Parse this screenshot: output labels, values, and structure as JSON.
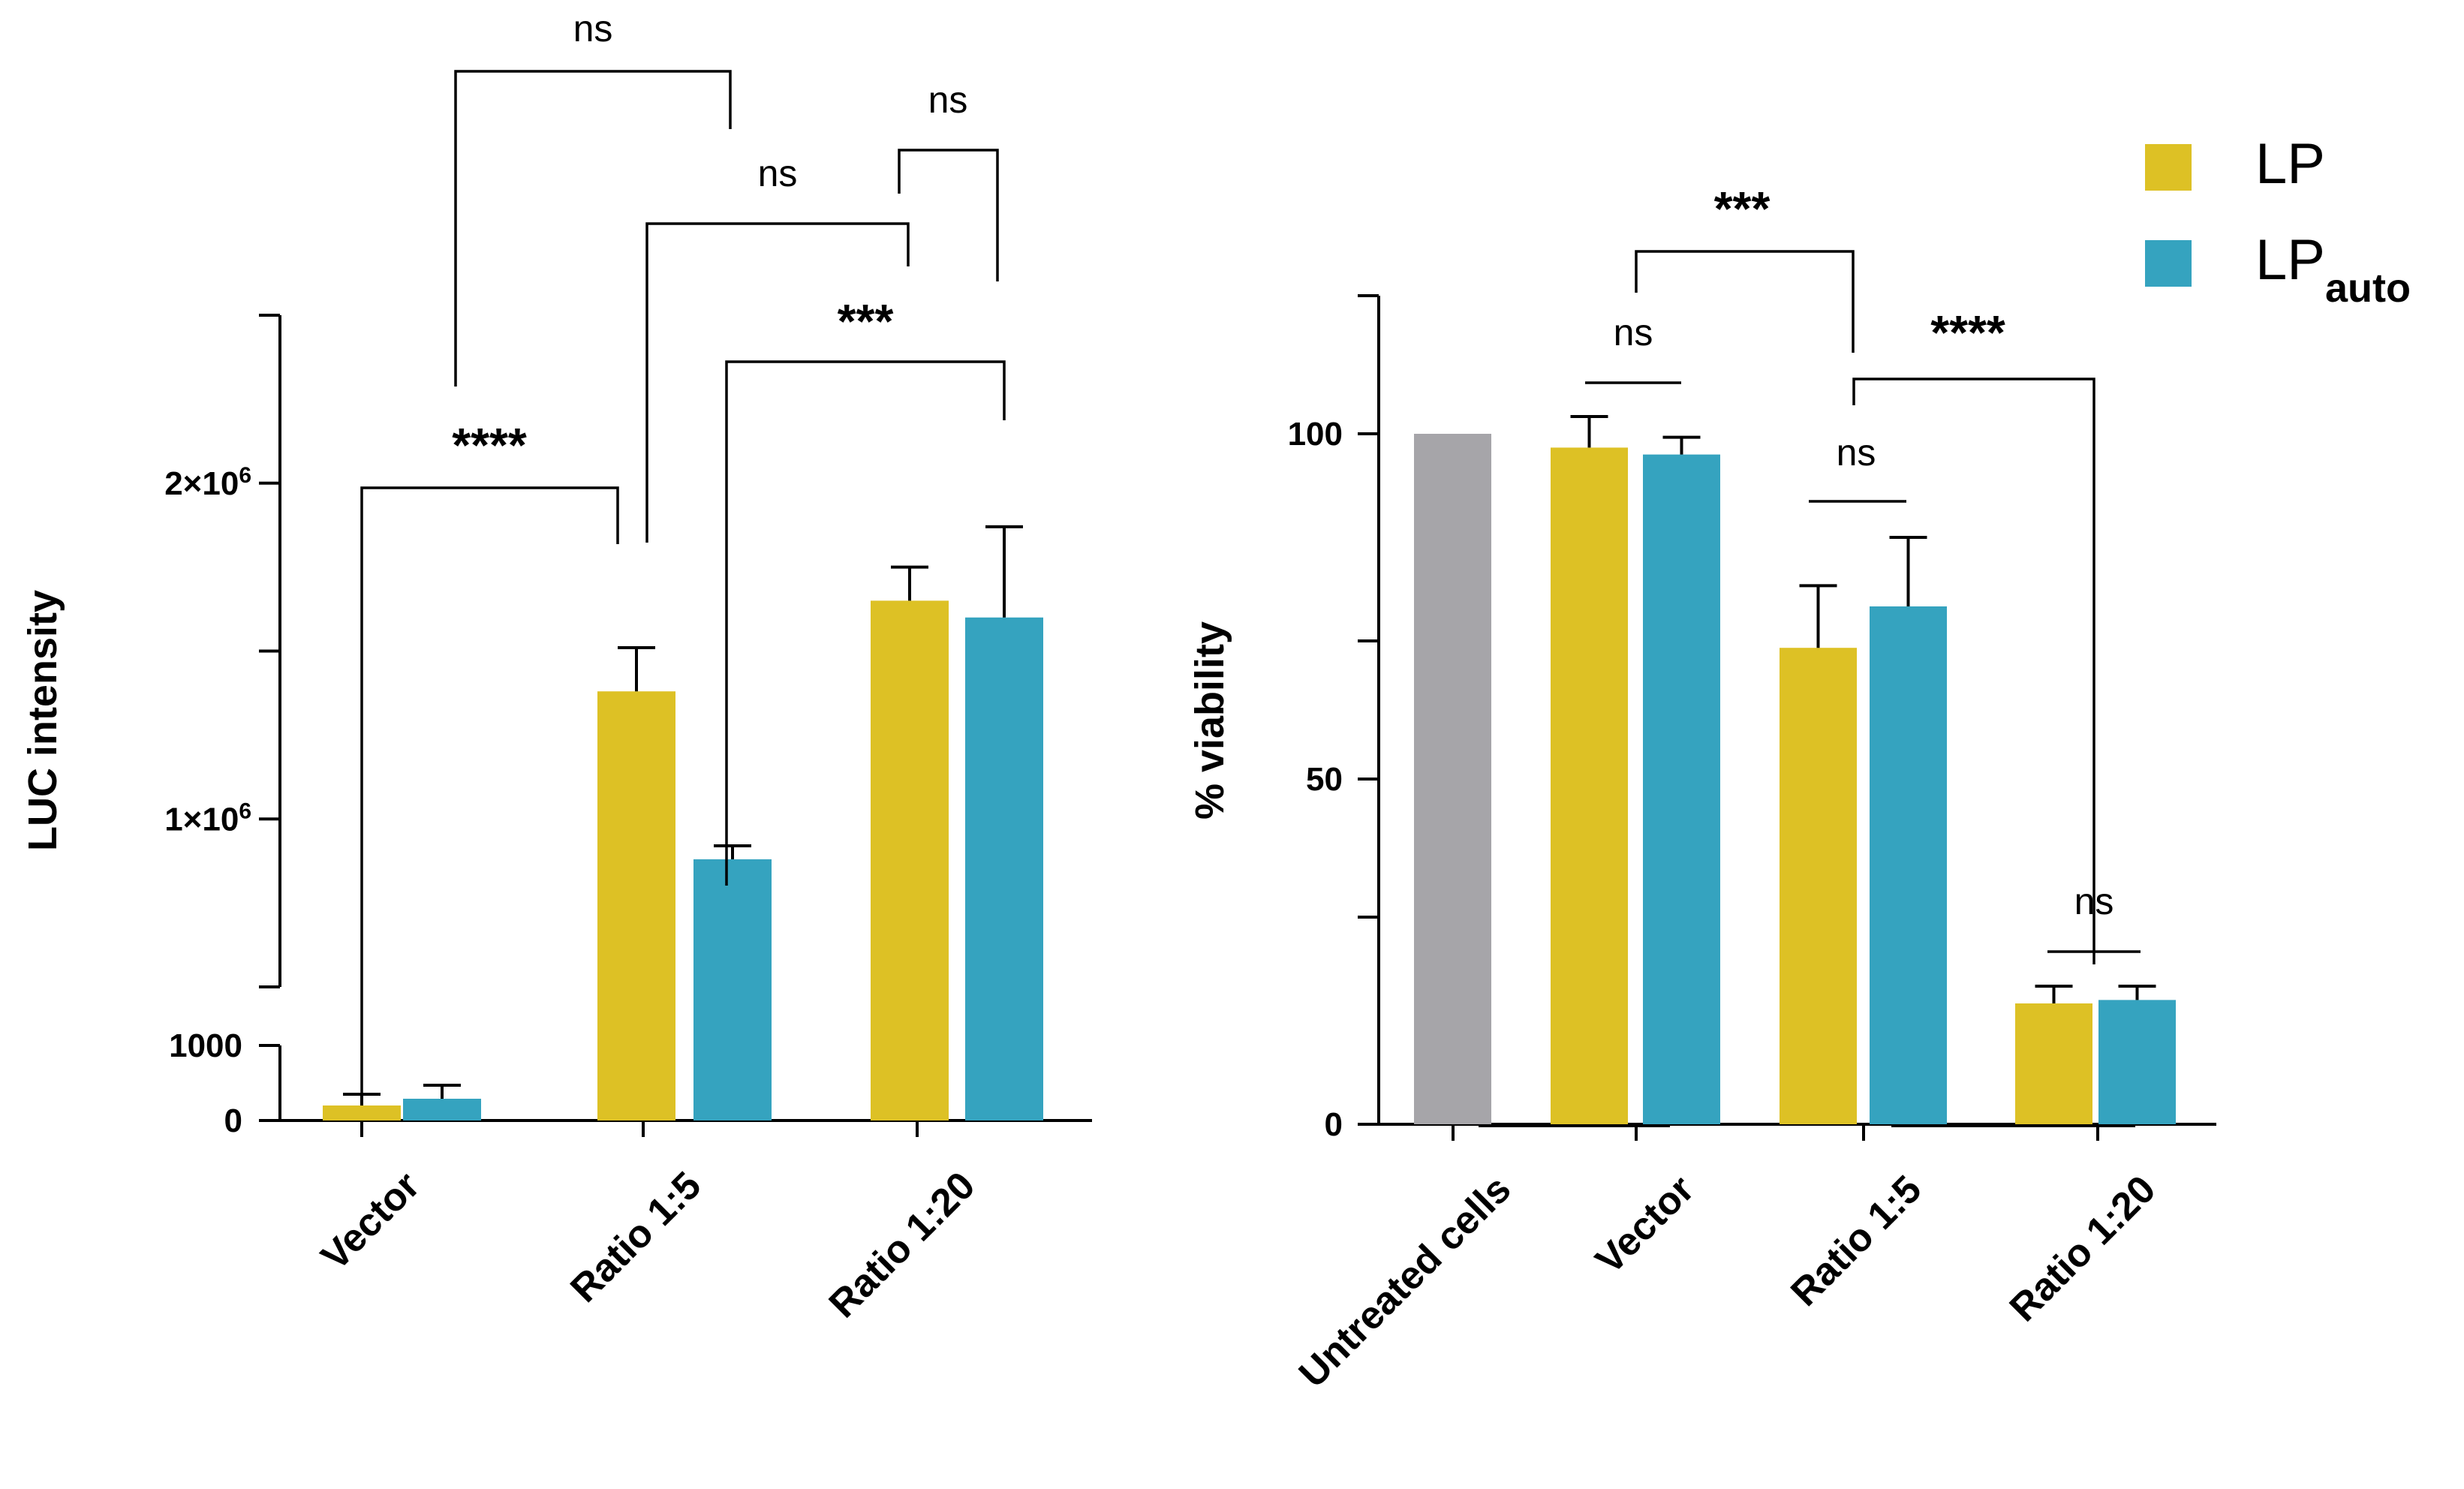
{
  "colors": {
    "lp": "#DDC125",
    "lp_auto": "#35A3BF",
    "untreated": "#A6A5A9",
    "axis": "#000000"
  },
  "legend": {
    "items": [
      {
        "label": "LP",
        "sub": "",
        "color": "#DDC125"
      },
      {
        "label": "LP",
        "sub": "auto",
        "color": "#35A3BF"
      }
    ]
  },
  "chart_data": [
    {
      "type": "bar",
      "title": "",
      "ylabel": "LUC intensity",
      "xlabel": "",
      "yaxis_break": true,
      "lower_ylim": [
        0,
        1000
      ],
      "upper_ylim": [
        500000,
        2500000
      ],
      "yticks": [
        {
          "value": 0,
          "label": "0"
        },
        {
          "value": 1000,
          "label": "1000"
        },
        {
          "value": 500000,
          "label": ""
        },
        {
          "value": 1000000,
          "label": "1×10",
          "sup": "6"
        },
        {
          "value": 1500000,
          "label": ""
        },
        {
          "value": 2000000,
          "label": "2×10",
          "sup": "6"
        },
        {
          "value": 2500000,
          "label": ""
        }
      ],
      "categories": [
        "Vector",
        "Ratio 1:5",
        "Ratio 1:20"
      ],
      "series": [
        {
          "name": "LP",
          "values": [
            200,
            1380000,
            1650000
          ],
          "errors": [
            150,
            130000,
            100000
          ]
        },
        {
          "name": "LP_auto",
          "values": [
            290,
            880000,
            1600000
          ],
          "errors": [
            180,
            40000,
            270000
          ]
        }
      ],
      "annotations": [
        {
          "text": "****",
          "from": "Vector · LP",
          "to": "Ratio 1:5 · LP"
        },
        {
          "text": "ns",
          "from": "Vector · LP vs Ratio 1:5 · LP bracket",
          "to": "Ratio 1:5 · LP_auto"
        },
        {
          "text": "ns",
          "from": "Ratio 1:5 · LP",
          "to": "Ratio 1:20 · LP"
        },
        {
          "text": "ns",
          "from": "Ratio 1:20 · LP",
          "to": "Ratio 1:20 · LP_auto"
        },
        {
          "text": "***",
          "from": "Ratio 1:5 · LP_auto",
          "to": "Ratio 1:20 · LP_auto"
        }
      ]
    },
    {
      "type": "bar",
      "title": "",
      "ylabel": "% viability",
      "xlabel": "",
      "ylim": [
        0,
        120
      ],
      "yticks": [
        {
          "value": 0,
          "label": "0"
        },
        {
          "value": 30,
          "label": ""
        },
        {
          "value": 50,
          "label": "50"
        },
        {
          "value": 70,
          "label": ""
        },
        {
          "value": 100,
          "label": "100"
        },
        {
          "value": 120,
          "label": ""
        }
      ],
      "categories": [
        "Untreated cells",
        "Vector",
        "Ratio 1:5",
        "Ratio 1:20"
      ],
      "series": [
        {
          "name": "Untreated",
          "values": [
            100,
            null,
            null,
            null
          ],
          "errors": [
            0,
            null,
            null,
            null
          ]
        },
        {
          "name": "LP",
          "values": [
            null,
            98,
            69,
            17.5
          ],
          "errors": [
            null,
            4.5,
            9,
            2.5
          ]
        },
        {
          "name": "LP_auto",
          "values": [
            null,
            97,
            75,
            18
          ],
          "errors": [
            null,
            2.5,
            10,
            2
          ]
        }
      ],
      "annotations": [
        {
          "text": "***",
          "from": "Vector",
          "to": "Ratio 1:5"
        },
        {
          "text": "ns",
          "from": "Vector · LP",
          "to": "Vector · LP_auto"
        },
        {
          "text": "****",
          "from": "Ratio 1:5",
          "to": "Ratio 1:20"
        },
        {
          "text": "ns",
          "from": "Ratio 1:5 · LP",
          "to": "Ratio 1:5 · LP_auto"
        },
        {
          "text": "ns",
          "from": "Ratio 1:20 · LP",
          "to": "Ratio 1:20 · LP_auto"
        }
      ]
    }
  ]
}
